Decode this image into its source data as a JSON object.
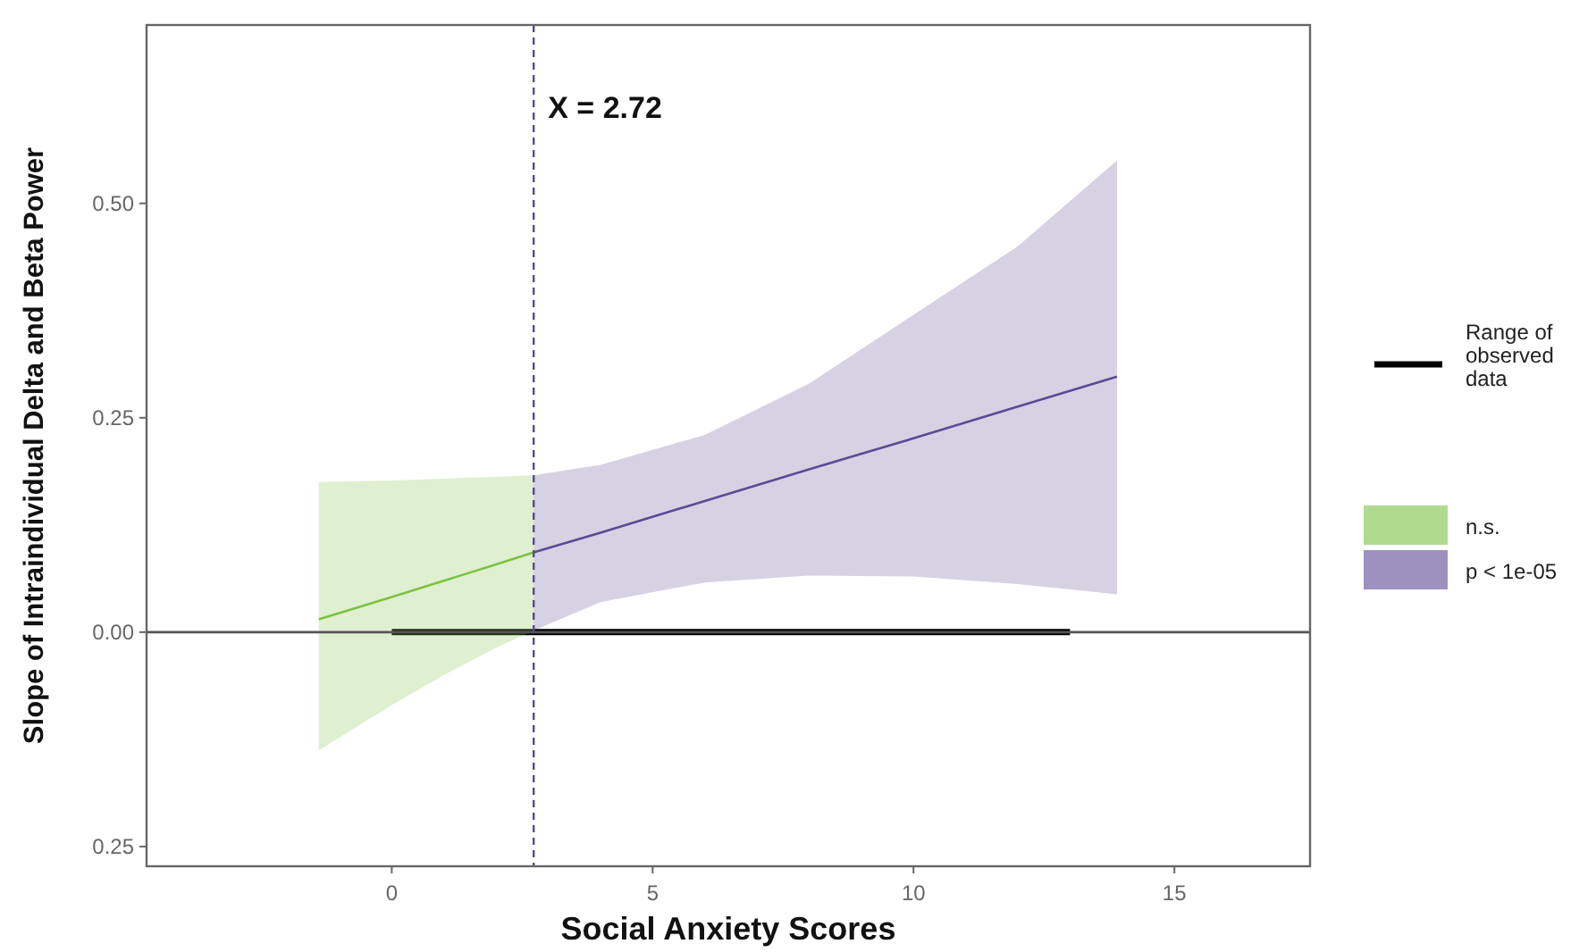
{
  "chart_data": {
    "type": "line",
    "xlabel": "Social Anxiety Scores",
    "ylabel": "Slope of Intraindividual Delta and Beta Power",
    "xlim": [
      -4.7,
      17.6
    ],
    "xticks": [
      0,
      5,
      10,
      15
    ],
    "ylim": [
      -0.273,
      0.708
    ],
    "yticks": [
      {
        "value": -0.25,
        "label": "0.25"
      },
      {
        "value": 0,
        "label": "0.00"
      },
      {
        "value": 0.25,
        "label": "0.25"
      },
      {
        "value": 0.5,
        "label": "0.50"
      }
    ],
    "grid": false,
    "legend": "right",
    "ref_lines": [
      {
        "axis": "y",
        "value": 0,
        "color": "#555555",
        "line_style": "solid"
      },
      {
        "axis": "x",
        "value": 2.72,
        "label": "X = 2.72",
        "color": "#5a4a8c",
        "line_style": "dashed"
      }
    ],
    "series": [
      {
        "name": "Range of observed data",
        "color": "#000000",
        "x": [
          0,
          13
        ],
        "values": [
          0,
          0
        ]
      },
      {
        "name": "n.s.",
        "color": "#7cc242",
        "x": [
          -1.4,
          0,
          1,
          2,
          2.72
        ],
        "values": [
          0.015,
          0.041,
          0.06,
          0.079,
          0.093
        ],
        "lower": [
          -0.138,
          -0.085,
          -0.05,
          -0.018,
          0.002
        ],
        "upper": [
          0.175,
          0.177,
          0.179,
          0.181,
          0.183
        ]
      },
      {
        "name": "p < 1e-05",
        "color": "#5b4a94",
        "x": [
          2.72,
          4,
          6,
          8,
          10,
          12,
          13.9
        ],
        "values": [
          0.093,
          0.116,
          0.153,
          0.19,
          0.226,
          0.263,
          0.298
        ],
        "lower": [
          0.002,
          0.035,
          0.058,
          0.066,
          0.065,
          0.056,
          0.044
        ],
        "upper": [
          0.183,
          0.195,
          0.23,
          0.29,
          0.37,
          0.45,
          0.55
        ]
      }
    ]
  }
}
